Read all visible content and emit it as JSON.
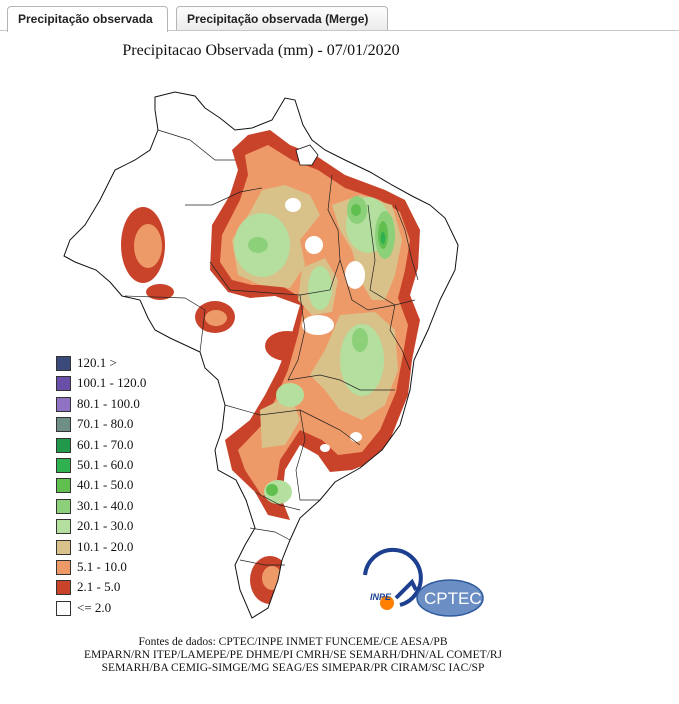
{
  "tabs": [
    {
      "label": "Precipitação observada"
    },
    {
      "label": "Precipitação observada (Merge)"
    }
  ],
  "map": {
    "title": "Precipitacao Observada (mm) - 07/01/2020",
    "legend": [
      {
        "label": "120.1 >",
        "color": "#3a4a7a"
      },
      {
        "label": "100.1 - 120.0",
        "color": "#6a4fa8"
      },
      {
        "label": "80.1 - 100.0",
        "color": "#8f72c4"
      },
      {
        "label": "70.1 - 80.0",
        "color": "#6f8f86"
      },
      {
        "label": "60.1 - 70.0",
        "color": "#22994a"
      },
      {
        "label": "50.1 - 60.0",
        "color": "#2fb14f"
      },
      {
        "label": "40.1 - 50.0",
        "color": "#61bf50"
      },
      {
        "label": "30.1 - 40.0",
        "color": "#8dd07a"
      },
      {
        "label": "20.1 - 30.0",
        "color": "#b4df9e"
      },
      {
        "label": "10.1 - 20.0",
        "color": "#d8c28a"
      },
      {
        "label": "5.1 - 10.0",
        "color": "#ee9a68"
      },
      {
        "label": "2.1 - 5.0",
        "color": "#c9432a"
      },
      {
        "label": "<= 2.0",
        "color": "#ffffff"
      }
    ],
    "sources": [
      "Fontes de dados: CPTEC/INPE INMET FUNCEME/CE AESA/PB",
      "EMPARN/RN ITEP/LAMEPE/PE DHME/PI CMRH/SE SEMARH/DHN/AL COMET/RJ",
      "SEMARH/BA CEMIG-SIMGE/MG SEAG/ES SIMEPAR/PR CIRAM/SC IAC/SP"
    ],
    "logos": {
      "inpe": "INPE",
      "cptec": "CPTEC"
    }
  }
}
